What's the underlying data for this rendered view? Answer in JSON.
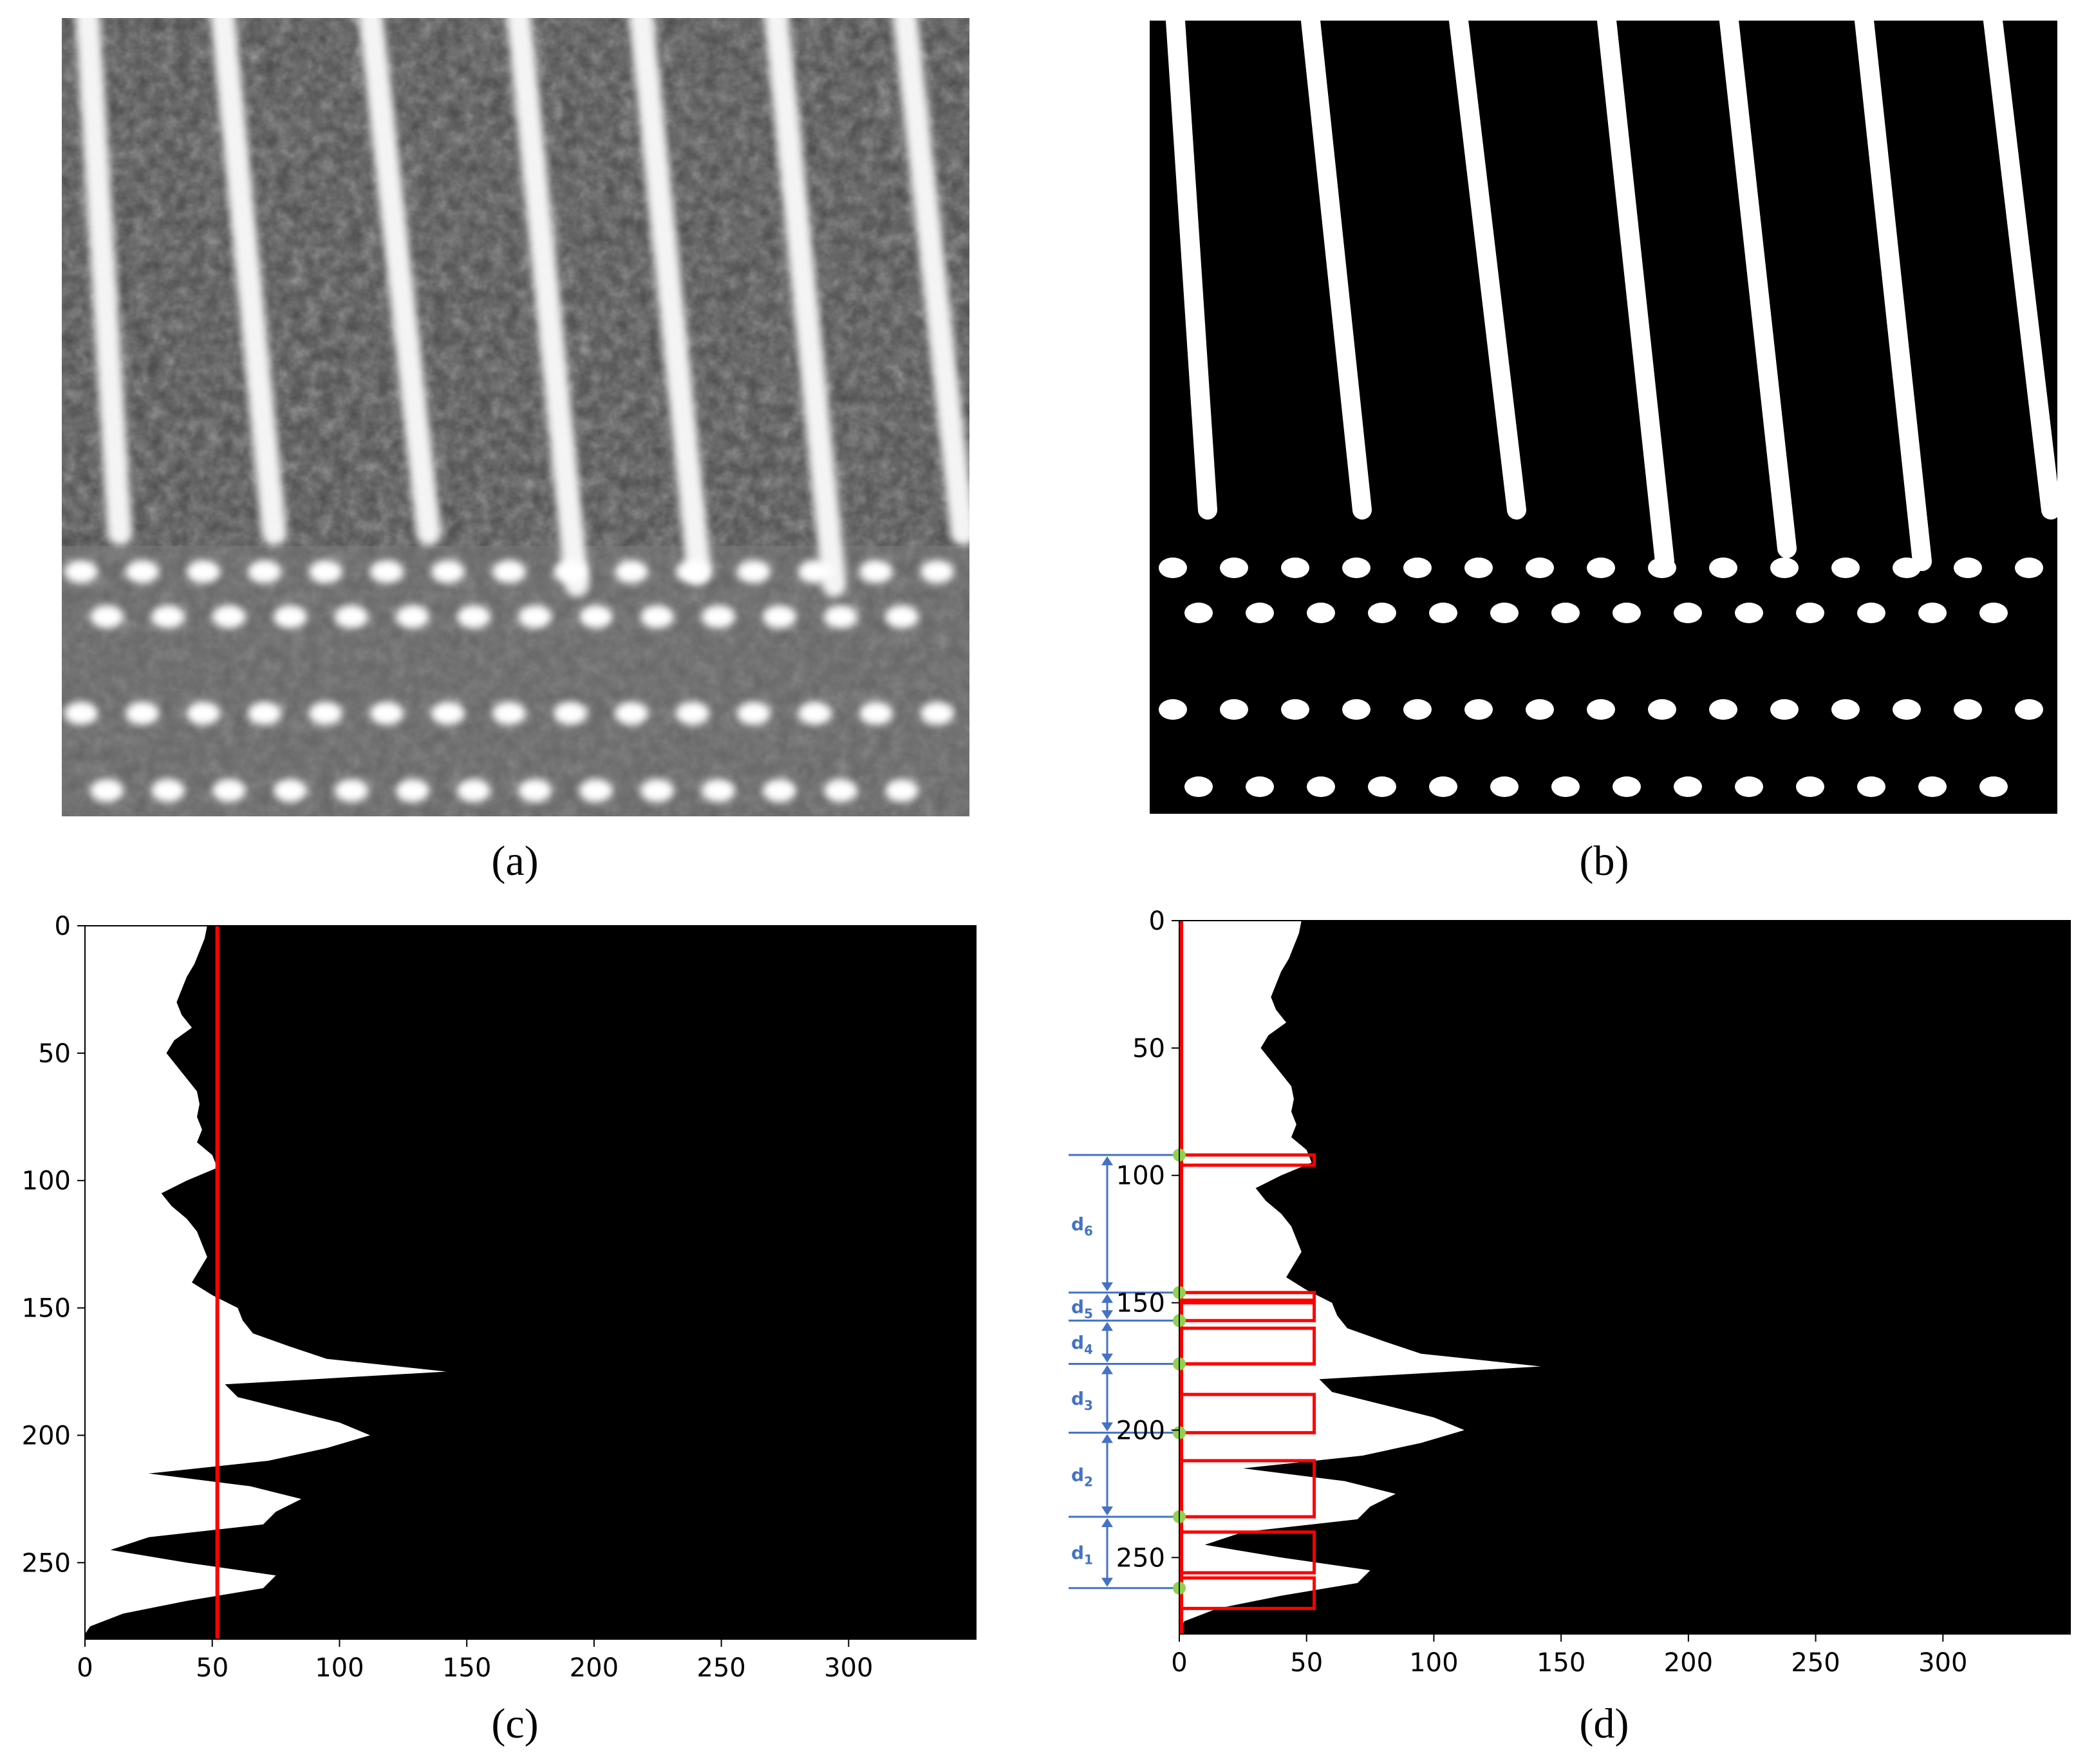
{
  "captions": {
    "a": "(a)",
    "b": "(b)",
    "c": "(c)",
    "d": "(d)"
  },
  "colors": {
    "threshold": "#ff0000",
    "annotation": "#4472c4",
    "marker": "#92d050",
    "profile_bg": "#000000",
    "profile_fill": "#ffffff"
  },
  "chart_data": [
    {
      "type": "area",
      "panel": "c",
      "title": "",
      "xlabel": "",
      "ylabel": "",
      "xlim": [
        0,
        350
      ],
      "ylim": [
        0,
        280
      ],
      "y_inverted": true,
      "xticks": [
        0,
        50,
        100,
        150,
        200,
        250,
        300
      ],
      "yticks": [
        0,
        50,
        100,
        150,
        200,
        250
      ],
      "grid": false,
      "profile": {
        "y": [
          0,
          5,
          10,
          15,
          20,
          25,
          30,
          35,
          40,
          45,
          50,
          55,
          60,
          65,
          70,
          75,
          80,
          85,
          90,
          95,
          100,
          105,
          110,
          115,
          120,
          125,
          130,
          135,
          140,
          145,
          150,
          155,
          160,
          165,
          170,
          175,
          180,
          185,
          190,
          195,
          200,
          205,
          210,
          215,
          220,
          225,
          230,
          235,
          240,
          245,
          250,
          255,
          260,
          265,
          270,
          275,
          278
        ],
        "x": [
          48,
          47,
          45,
          43,
          40,
          38,
          36,
          38,
          42,
          35,
          32,
          36,
          40,
          44,
          45,
          44,
          46,
          44,
          50,
          52,
          40,
          30,
          34,
          40,
          44,
          46,
          48,
          45,
          42,
          50,
          60,
          62,
          66,
          80,
          95,
          142,
          55,
          60,
          80,
          100,
          112,
          95,
          72,
          25,
          65,
          85,
          75,
          70,
          25,
          10,
          40,
          75,
          70,
          40,
          15,
          2,
          0
        ]
      },
      "series": [
        {
          "type": "vline",
          "x": 52,
          "color": "#ff0000"
        }
      ]
    },
    {
      "type": "area",
      "panel": "d",
      "title": "",
      "xlabel": "",
      "ylabel": "",
      "xlim": [
        0,
        350
      ],
      "ylim": [
        0,
        280
      ],
      "y_inverted": true,
      "xticks": [
        0,
        50,
        100,
        150,
        200,
        250,
        300
      ],
      "yticks": [
        0,
        50,
        100,
        150,
        200,
        250
      ],
      "grid": false,
      "threshold_x": 52,
      "crossings_y": [
        92,
        146,
        157,
        174,
        201,
        234,
        262
      ],
      "band_width_x": 53,
      "markers_y": [
        92,
        146,
        157,
        174,
        201,
        234,
        262
      ],
      "distances": [
        {
          "label": "d",
          "sub": "1",
          "y0": 234,
          "y1": 262
        },
        {
          "label": "d",
          "sub": "2",
          "y0": 201,
          "y1": 234
        },
        {
          "label": "d",
          "sub": "3",
          "y0": 174,
          "y1": 201
        },
        {
          "label": "d",
          "sub": "4",
          "y0": 157,
          "y1": 174
        },
        {
          "label": "d",
          "sub": "5",
          "y0": 146,
          "y1": 157
        },
        {
          "label": "d",
          "sub": "6",
          "y0": 92,
          "y1": 146
        }
      ]
    }
  ]
}
